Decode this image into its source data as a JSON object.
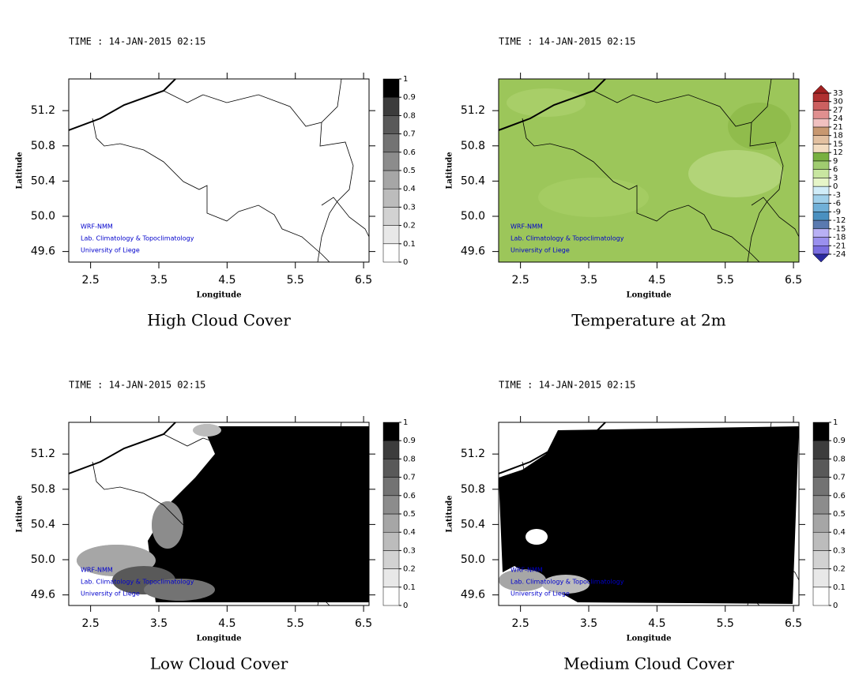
{
  "panels": [
    {
      "time": "TIME : 14-JAN-2015 02:15",
      "title": "High Cloud Cover",
      "xlabel": "Longitude",
      "ylabel": "Latitude",
      "xlim": [
        2.18,
        6.58
      ],
      "ylim": [
        49.48,
        51.56
      ],
      "xticks": [
        2.5,
        3.5,
        4.5,
        5.5,
        6.5
      ],
      "yticks": [
        49.6,
        {
          "value": 50.0,
          "label": "50.0"
        },
        50.4,
        50.8,
        51.2
      ],
      "credits": [
        "WRF-NMM",
        "Lab. Climatology & Topoclimatology",
        "University of Liege"
      ],
      "colorbar": {
        "ticks": [
          0,
          0.1,
          0.2,
          0.3,
          0.4,
          0.5,
          0.6,
          0.7,
          0.8,
          0.9,
          1
        ],
        "colors": [
          "#ffffff",
          "#e8e8e8",
          "#d2d2d2",
          "#bcbcbc",
          "#a6a6a6",
          "#8c8c8c",
          "#737373",
          "#595959",
          "#3c3c3c",
          "#000000"
        ]
      }
    },
    {
      "time": "TIME : 14-JAN-2015 02:15",
      "title": "Temperature at 2m",
      "xlabel": "Longitude",
      "ylabel": "Latitude",
      "xlim": [
        2.18,
        6.58
      ],
      "ylim": [
        49.48,
        51.56
      ],
      "xticks": [
        2.5,
        3.5,
        4.5,
        5.5,
        6.5
      ],
      "yticks": [
        49.6,
        {
          "value": 50.0,
          "label": "50.0"
        },
        50.4,
        50.8,
        51.2
      ],
      "credits": [
        "WRF-NMM",
        "Lab. Climatology & Topoclimatology",
        "University of Liege"
      ],
      "colorbar": {
        "ticks": [
          -24,
          -21,
          -18,
          -15,
          -12,
          -9,
          -6,
          -3,
          0,
          3,
          6,
          9,
          12,
          15,
          18,
          21,
          24,
          27,
          30,
          33
        ],
        "colors": [
          "#7a6ee0",
          "#9a90ee",
          "#b8b0f4",
          "#5a7ab0",
          "#4a90c0",
          "#70b0d8",
          "#a0d0ea",
          "#d0ecf8",
          "#e6f5c8",
          "#c8e6a0",
          "#a0cc70",
          "#78b040",
          "#f2dcc0",
          "#e2c0a0",
          "#c89870",
          "#f0c0c0",
          "#e09090",
          "#cc6060",
          "#b03030"
        ],
        "under": "#2a2aa0",
        "over": "#a02020"
      }
    },
    {
      "time": "TIME : 14-JAN-2015 02:15",
      "title": "Low Cloud Cover",
      "xlabel": "Longitude",
      "ylabel": "Latitude",
      "xlim": [
        2.18,
        6.58
      ],
      "ylim": [
        49.48,
        51.56
      ],
      "xticks": [
        2.5,
        3.5,
        4.5,
        5.5,
        6.5
      ],
      "yticks": [
        49.6,
        {
          "value": 50.0,
          "label": "50.0"
        },
        50.4,
        50.8,
        51.2
      ],
      "credits": [
        "WRF-NMM",
        "Lab. Climatology & Topoclimatology",
        "University of Liege"
      ],
      "colorbar": {
        "ticks": [
          0,
          0.1,
          0.2,
          0.3,
          0.4,
          0.5,
          0.6,
          0.7,
          0.8,
          0.9,
          1
        ],
        "colors": [
          "#ffffff",
          "#e8e8e8",
          "#d2d2d2",
          "#bcbcbc",
          "#a6a6a6",
          "#8c8c8c",
          "#737373",
          "#595959",
          "#3c3c3c",
          "#000000"
        ]
      }
    },
    {
      "time": "TIME : 14-JAN-2015 02:15",
      "title": "Medium Cloud Cover",
      "xlabel": "Longitude",
      "ylabel": "Latitude",
      "xlim": [
        2.18,
        6.58
      ],
      "ylim": [
        49.48,
        51.56
      ],
      "xticks": [
        2.5,
        3.5,
        4.5,
        5.5,
        6.5
      ],
      "yticks": [
        49.6,
        {
          "value": 50.0,
          "label": "50.0"
        },
        50.4,
        50.8,
        51.2
      ],
      "credits": [
        "WRF-NMM",
        "Lab. Climatology & Topoclimatology",
        "University of Liege"
      ],
      "colorbar": {
        "ticks": [
          0,
          0.1,
          0.2,
          0.3,
          0.4,
          0.5,
          0.6,
          0.7,
          0.8,
          0.9,
          1
        ],
        "colors": [
          "#ffffff",
          "#e8e8e8",
          "#d2d2d2",
          "#bcbcbc",
          "#a6a6a6",
          "#8c8c8c",
          "#737373",
          "#595959",
          "#3c3c3c",
          "#000000"
        ]
      }
    }
  ]
}
